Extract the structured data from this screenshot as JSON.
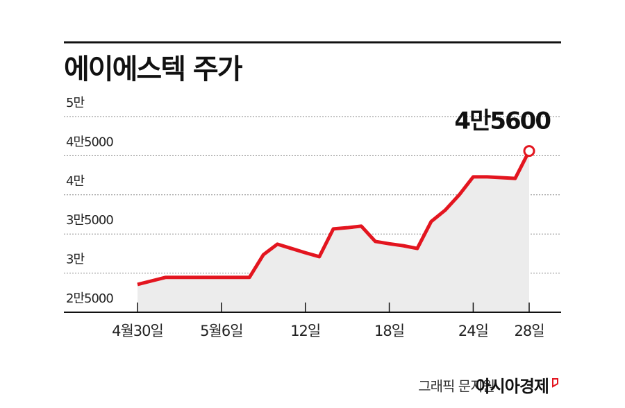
{
  "chart_data": {
    "type": "line",
    "title": "에이에스텍 주가",
    "categories": [
      "4월30일",
      null,
      null,
      null,
      null,
      null,
      "5월6일",
      null,
      null,
      null,
      null,
      null,
      "12일",
      null,
      null,
      null,
      null,
      null,
      "18일",
      null,
      null,
      null,
      null,
      null,
      "24일",
      null,
      null,
      null,
      "28일"
    ],
    "series": [
      {
        "name": "에이에스텍",
        "color": "#e3151f",
        "values": [
          28550,
          29000,
          29450,
          29450,
          29450,
          29450,
          29450,
          29450,
          29450,
          32350,
          33700,
          33150,
          32600,
          32100,
          35650,
          35800,
          36000,
          34050,
          33750,
          33500,
          33150,
          36600,
          38050,
          40000,
          42300,
          42300,
          42200,
          42100,
          45600
        ],
        "value_labels": [
          null,
          null,
          null,
          null,
          null,
          null,
          null,
          null,
          null,
          null,
          null,
          null,
          null,
          null,
          null,
          null,
          null,
          null,
          null,
          null,
          null,
          null,
          null,
          null,
          null,
          null,
          null,
          null,
          "4만5600"
        ]
      }
    ],
    "ylim": [
      25000,
      50000
    ],
    "yticks": [
      {
        "value": 25000,
        "label": "2만5000"
      },
      {
        "value": 30000,
        "label": "3만"
      },
      {
        "value": 35000,
        "label": "3만5000"
      },
      {
        "value": 40000,
        "label": "4만"
      },
      {
        "value": 45000,
        "label": "4만5000"
      },
      {
        "value": 50000,
        "label": "5만"
      }
    ],
    "grid": true,
    "area_color": "#ececec",
    "credit": "그래픽 문지원",
    "source": "아시아경제"
  }
}
